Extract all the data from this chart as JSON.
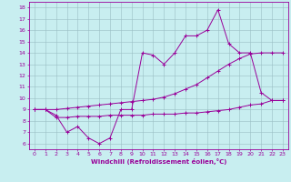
{
  "xlabel": "Windchill (Refroidissement éolien,°C)",
  "background_color": "#c8eef0",
  "grid_color": "#b0d0d4",
  "line_color": "#990099",
  "xlim": [
    -0.5,
    23.5
  ],
  "ylim": [
    5.5,
    18.5
  ],
  "yticks": [
    6,
    7,
    8,
    9,
    10,
    11,
    12,
    13,
    14,
    15,
    16,
    17,
    18
  ],
  "xticks": [
    0,
    1,
    2,
    3,
    4,
    5,
    6,
    7,
    8,
    9,
    10,
    11,
    12,
    13,
    14,
    15,
    16,
    17,
    18,
    19,
    20,
    21,
    22,
    23
  ],
  "line1_x": [
    0,
    1,
    2,
    3,
    4,
    5,
    6,
    7,
    8,
    9,
    10,
    11,
    12,
    13,
    14,
    15,
    16,
    17,
    18,
    19,
    20,
    21,
    22,
    23
  ],
  "line1_y": [
    9.0,
    9.0,
    8.5,
    7.0,
    7.5,
    6.5,
    6.0,
    6.5,
    9.0,
    9.0,
    14.0,
    13.8,
    13.0,
    14.0,
    15.5,
    15.5,
    16.0,
    17.8,
    14.8,
    14.0,
    14.0,
    10.5,
    9.8,
    9.8
  ],
  "line2_x": [
    0,
    1,
    2,
    3,
    4,
    5,
    6,
    7,
    8,
    9,
    10,
    11,
    12,
    13,
    14,
    15,
    16,
    17,
    18,
    19,
    20,
    21,
    22,
    23
  ],
  "line2_y": [
    9.0,
    9.0,
    9.0,
    9.1,
    9.2,
    9.3,
    9.4,
    9.5,
    9.6,
    9.7,
    9.8,
    9.9,
    10.1,
    10.4,
    10.8,
    11.2,
    11.8,
    12.4,
    13.0,
    13.5,
    13.9,
    14.0,
    14.0,
    14.0
  ],
  "line3_x": [
    0,
    1,
    2,
    3,
    4,
    5,
    6,
    7,
    8,
    9,
    10,
    11,
    12,
    13,
    14,
    15,
    16,
    17,
    18,
    19,
    20,
    21,
    22,
    23
  ],
  "line3_y": [
    9.0,
    9.0,
    8.3,
    8.3,
    8.4,
    8.4,
    8.4,
    8.5,
    8.5,
    8.5,
    8.5,
    8.6,
    8.6,
    8.6,
    8.7,
    8.7,
    8.8,
    8.9,
    9.0,
    9.2,
    9.4,
    9.5,
    9.8,
    9.8
  ]
}
